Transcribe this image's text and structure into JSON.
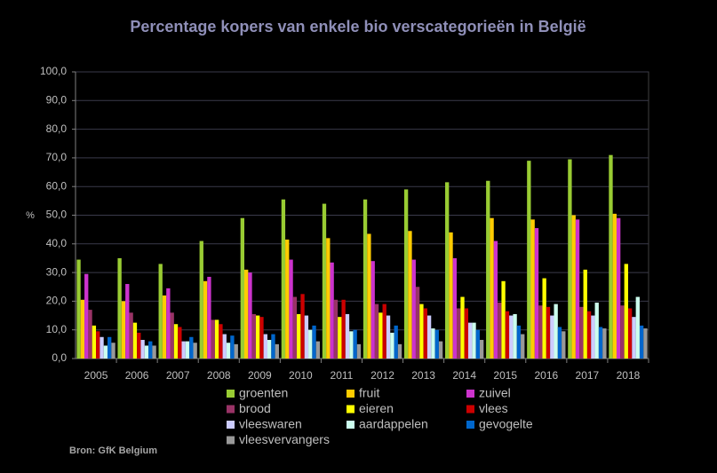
{
  "chart_data": {
    "type": "bar",
    "title": "Percentage kopers van enkele bio verscategorieën in België",
    "y_label": "%",
    "source": "Bron: GfK Belgium",
    "categories": [
      "2005",
      "2006",
      "2007",
      "2008",
      "2009",
      "2010",
      "2011",
      "2012",
      "2013",
      "2014",
      "2015",
      "2016",
      "2017",
      "2018"
    ],
    "series": [
      {
        "name": "groenten",
        "color": "#99cc33",
        "values": [
          34.5,
          35,
          33,
          41,
          49,
          55.5,
          54,
          55.5,
          59,
          61.5,
          62,
          69,
          69.5,
          71
        ]
      },
      {
        "name": "fruit",
        "color": "#ffcc00",
        "values": [
          20.5,
          20,
          22,
          27,
          31,
          41.5,
          42,
          43.5,
          44.5,
          44,
          49,
          48.5,
          50,
          50.5
        ]
      },
      {
        "name": "zuivel",
        "color": "#cc33cc",
        "values": [
          29.5,
          26,
          24.5,
          28.5,
          30,
          34.5,
          33.5,
          34,
          34.5,
          35,
          41,
          45.5,
          48.5,
          49
        ]
      },
      {
        "name": "brood",
        "color": "#993366",
        "values": [
          17,
          16,
          16,
          13.5,
          15.5,
          21.5,
          20.5,
          19,
          25,
          17.5,
          19.5,
          18.5,
          18,
          18.5
        ]
      },
      {
        "name": "eieren",
        "color": "#ffff00",
        "values": [
          11.5,
          12.5,
          12,
          13.5,
          15,
          15.5,
          14.5,
          16,
          19,
          21.5,
          27,
          28,
          31,
          33
        ]
      },
      {
        "name": "vlees",
        "color": "#cc0000",
        "values": [
          9.5,
          9,
          11,
          12,
          14.5,
          22.5,
          20.5,
          19,
          17.5,
          17.5,
          16.5,
          18,
          16.5,
          17.5
        ]
      },
      {
        "name": "vleeswaren",
        "color": "#ccccff",
        "values": [
          7.5,
          6.5,
          6,
          8.5,
          8.5,
          15,
          15.5,
          15,
          15,
          12.5,
          15,
          15,
          15,
          14.5
        ]
      },
      {
        "name": "aardappelen",
        "color": "#ccffee",
        "values": [
          4.5,
          4.5,
          6,
          5.5,
          6.5,
          10,
          9.5,
          9,
          10.5,
          12.5,
          15.5,
          19,
          19.5,
          21.5
        ]
      },
      {
        "name": "gevogelte",
        "color": "#0066cc",
        "values": [
          7.5,
          6,
          7.5,
          8,
          8.5,
          11.5,
          10,
          11.5,
          10,
          10,
          11.5,
          11,
          11,
          11.5
        ]
      },
      {
        "name": "vleesvervangers",
        "color": "#999999",
        "values": [
          5.5,
          4.5,
          5.5,
          5,
          5,
          6,
          5,
          5,
          6,
          6.5,
          8.5,
          9.5,
          10.5,
          10.5
        ]
      }
    ],
    "ylim": [
      0,
      100
    ],
    "yticks": [
      {
        "value": 0,
        "label": "0,0"
      },
      {
        "value": 10,
        "label": "10,0"
      },
      {
        "value": 20,
        "label": "20,0"
      },
      {
        "value": 30,
        "label": "30,0"
      },
      {
        "value": 40,
        "label": "40,0"
      },
      {
        "value": 50,
        "label": "50,0"
      },
      {
        "value": 60,
        "label": "60,0"
      },
      {
        "value": 70,
        "label": "70,0"
      },
      {
        "value": 80,
        "label": "80,0"
      },
      {
        "value": 90,
        "label": "90,0"
      },
      {
        "value": 100,
        "label": "100,0"
      }
    ],
    "grid": true
  }
}
